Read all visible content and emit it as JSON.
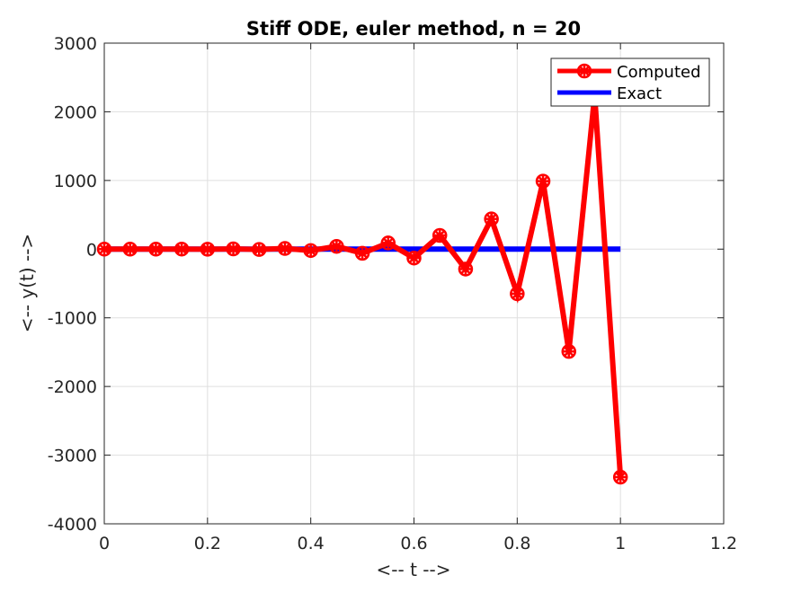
{
  "chart_data": {
    "type": "line",
    "title": "Stiff ODE, euler method, n = 20",
    "xlabel": "<-- t -->",
    "ylabel": "<-- y(t) -->",
    "xlim": [
      0,
      1.2
    ],
    "ylim": [
      -4000,
      3000
    ],
    "xticks": [
      0,
      0.2,
      0.4,
      0.6,
      0.8,
      1,
      1.2
    ],
    "xtick_labels": [
      "0",
      "0.2",
      "0.4",
      "0.6",
      "0.8",
      "1",
      "1.2"
    ],
    "yticks": [
      -4000,
      -3000,
      -2000,
      -1000,
      0,
      1000,
      2000,
      3000
    ],
    "ytick_labels": [
      "-4000",
      "-3000",
      "-2000",
      "-1000",
      "0",
      "1000",
      "2000",
      "3000"
    ],
    "grid": true,
    "legend_position": "top-right",
    "series": [
      {
        "name": "Computed",
        "color": "#ff0000",
        "marker": "asterisk-circle",
        "x": [
          0,
          0.05,
          0.1,
          0.15,
          0.2,
          0.25,
          0.3,
          0.35,
          0.4,
          0.45,
          0.5,
          0.55,
          0.6,
          0.65,
          0.7,
          0.75,
          0.8,
          0.85,
          0.9,
          0.95,
          1
        ],
        "y": [
          0,
          0,
          0,
          1,
          -1,
          3,
          -5,
          10,
          -20,
          40,
          -60,
          90,
          -130,
          200,
          -290,
          440,
          -650,
          990,
          -1490,
          2240,
          -3320
        ]
      },
      {
        "name": "Exact",
        "color": "#0000ff",
        "marker": "none",
        "x": [
          0,
          0.05,
          0.1,
          0.15,
          0.2,
          0.25,
          0.3,
          0.35,
          0.4,
          0.45,
          0.5,
          0.55,
          0.6,
          0.65,
          0.7,
          0.75,
          0.8,
          0.85,
          0.9,
          0.95,
          1
        ],
        "y": [
          0,
          0,
          0,
          0,
          0,
          0,
          0,
          0,
          0,
          0,
          0,
          0,
          0,
          0,
          0,
          0,
          0,
          0,
          0,
          0,
          0
        ]
      }
    ]
  }
}
